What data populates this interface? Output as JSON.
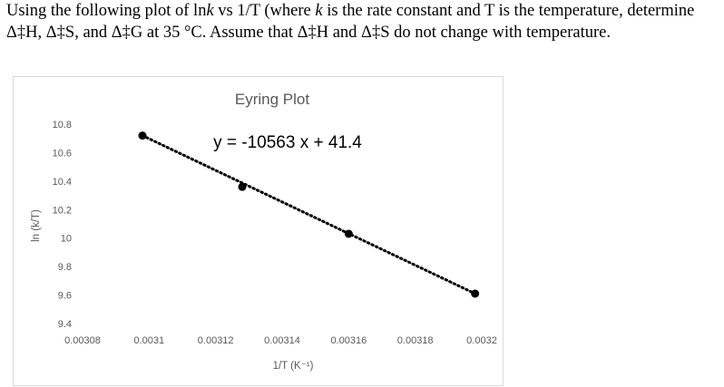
{
  "question": {
    "part1": "Using the following plot of ln",
    "k1": "k",
    "part2": " vs 1/T (where ",
    "k2": "k",
    "part3": " is the rate constant and T is the temperature, determine Δ‡H, Δ‡S, and Δ‡G at 35 °C. Assume that Δ‡H and Δ‡S do not change with temperature."
  },
  "chart_data": {
    "type": "scatter",
    "title": "Eyring Plot",
    "xlabel": "1/T (K⁻¹)",
    "ylabel": "ln (k/T)",
    "annotation": "y = -10563 x + 41.4",
    "xlim": [
      0.00308,
      0.0032
    ],
    "ylim": [
      9.4,
      10.8
    ],
    "x_ticks": [
      "0.00308",
      "0.0031",
      "0.00312",
      "0.00314",
      "0.00316",
      "0.00318",
      "0.0032"
    ],
    "y_ticks": [
      "10.8",
      "10.6",
      "10.4",
      "10.2",
      "10",
      "9.8",
      "9.6",
      "9.4"
    ],
    "grid": false,
    "legend": "none",
    "trendline": {
      "slope": -10563,
      "intercept": 41.4,
      "style": "dotted"
    },
    "series": [
      {
        "x": [
          0.003098,
          0.003128,
          0.00316,
          0.003198
        ],
        "y": [
          10.72,
          10.36,
          10.03,
          9.61
        ]
      }
    ],
    "colors": {
      "marker": "#000000",
      "text": "#595959",
      "frame": "#d9d9d9"
    }
  }
}
